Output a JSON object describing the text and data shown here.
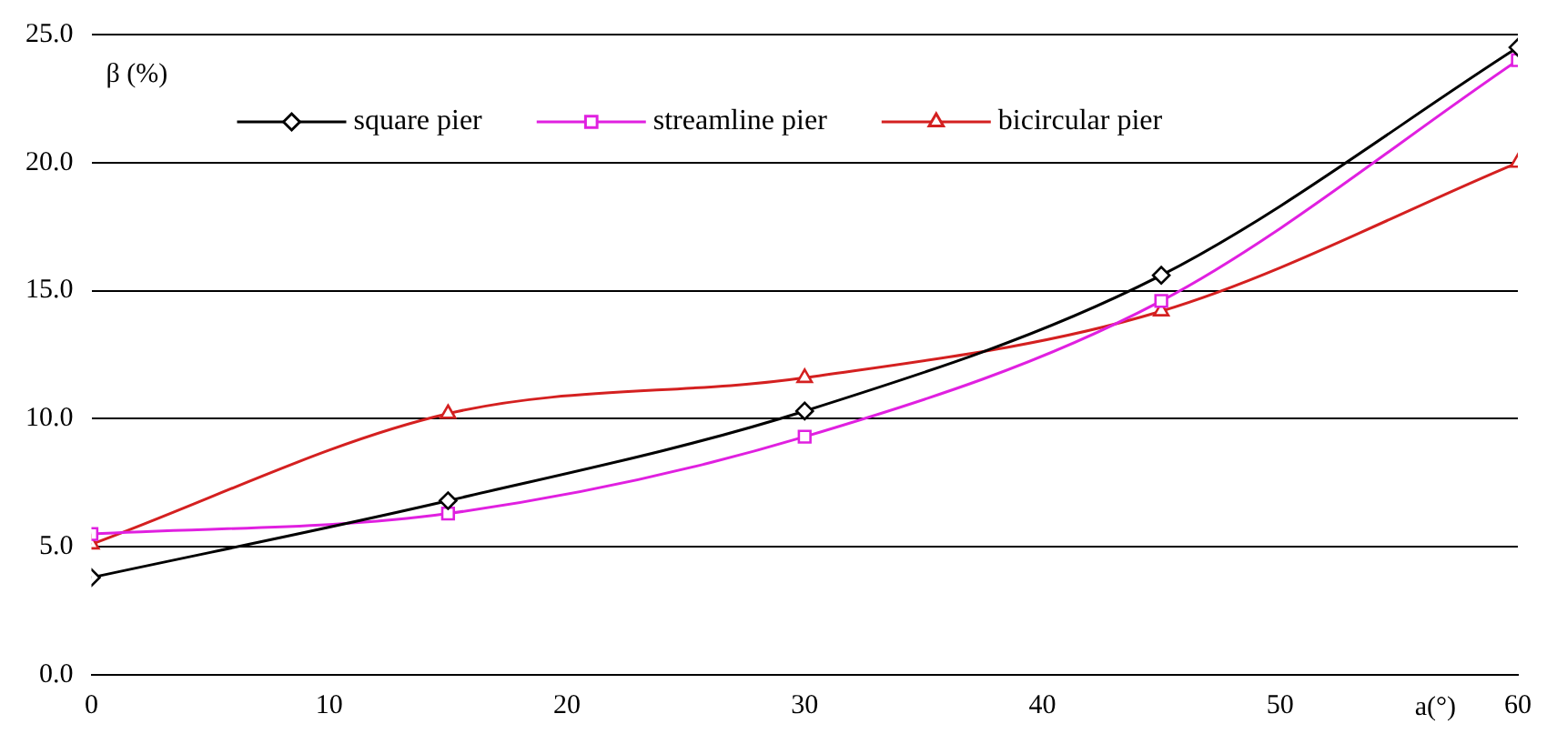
{
  "chart_data": {
    "type": "line",
    "ylabel": "β (%)",
    "xlabel": "a(°)",
    "x": [
      0,
      15,
      30,
      45,
      60
    ],
    "series": [
      {
        "name": "square pier",
        "color": "#000000",
        "marker": "diamond",
        "values": [
          3.8,
          6.8,
          10.3,
          15.6,
          24.5
        ]
      },
      {
        "name": "streamline pier",
        "color": "#e020e0",
        "marker": "square",
        "values": [
          5.5,
          6.3,
          9.3,
          14.6,
          24.0
        ]
      },
      {
        "name": "bicircular pier",
        "color": "#d42020",
        "marker": "triangle",
        "values": [
          5.1,
          10.2,
          11.6,
          14.2,
          20.0
        ]
      }
    ],
    "xlim": [
      0,
      60
    ],
    "xticks": [
      0,
      10,
      20,
      30,
      40,
      50,
      60
    ],
    "ylim": [
      0,
      25
    ],
    "yticks": [
      {
        "value": 0,
        "label": "0.0"
      },
      {
        "value": 5,
        "label": "5.0"
      },
      {
        "value": 10,
        "label": "10.0"
      },
      {
        "value": 15,
        "label": "15.0"
      },
      {
        "value": 20,
        "label": "20.0"
      },
      {
        "value": 25,
        "label": "25.0"
      }
    ],
    "grid": "y",
    "legend": "top"
  }
}
